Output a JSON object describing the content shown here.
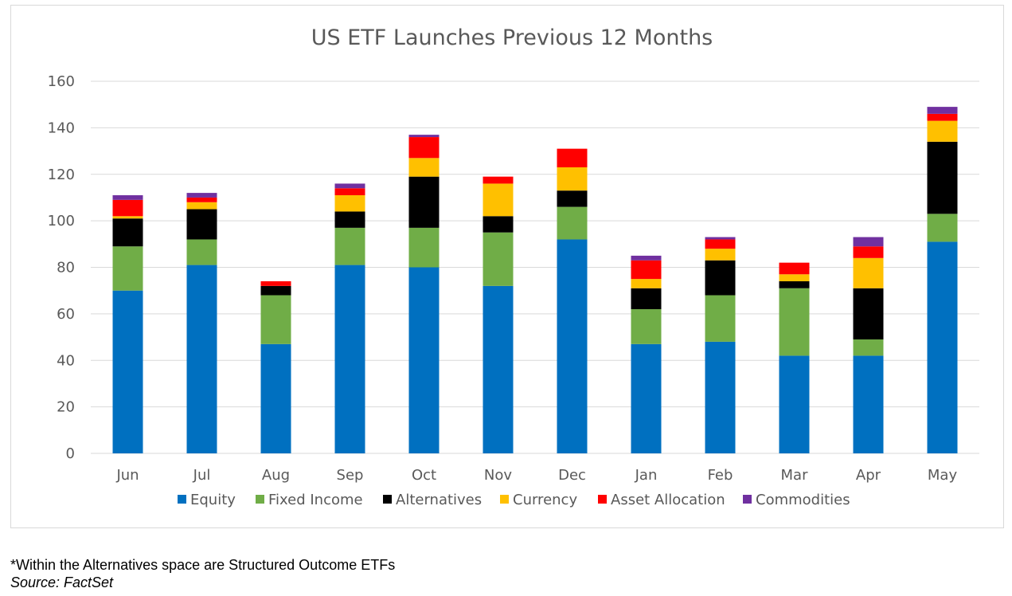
{
  "chart_data": {
    "type": "bar",
    "stacked": true,
    "title": "US ETF Launches Previous 12 Months",
    "categories": [
      "Jun",
      "Jul",
      "Aug",
      "Sep",
      "Oct",
      "Nov",
      "Dec",
      "Jan",
      "Feb",
      "Mar",
      "Apr",
      "May"
    ],
    "ylim": [
      0,
      160
    ],
    "yticks": [
      0,
      20,
      40,
      60,
      80,
      100,
      120,
      140,
      160
    ],
    "grid": true,
    "legend_position": "bottom",
    "series": [
      {
        "name": "Equity",
        "color": "#0070c0",
        "values": [
          70,
          81,
          47,
          81,
          80,
          72,
          92,
          47,
          48,
          42,
          42,
          91
        ]
      },
      {
        "name": "Fixed Income",
        "color": "#70ad47",
        "values": [
          19,
          11,
          21,
          16,
          17,
          23,
          14,
          15,
          20,
          29,
          7,
          12
        ]
      },
      {
        "name": "Alternatives",
        "color": "#000000",
        "values": [
          12,
          13,
          4,
          7,
          22,
          7,
          7,
          9,
          15,
          3,
          22,
          31
        ]
      },
      {
        "name": "Currency",
        "color": "#ffc000",
        "values": [
          1,
          3,
          0,
          7,
          8,
          14,
          10,
          4,
          5,
          3,
          13,
          9
        ]
      },
      {
        "name": "Asset Allocation",
        "color": "#ff0000",
        "values": [
          7,
          2,
          2,
          3,
          9,
          3,
          8,
          8,
          4,
          5,
          5,
          3
        ]
      },
      {
        "name": "Commodities",
        "color": "#7030a0",
        "values": [
          2,
          2,
          0,
          2,
          1,
          0,
          0,
          2,
          1,
          0,
          4,
          3
        ]
      }
    ]
  },
  "footnote": "*Within the Alternatives space are Structured Outcome ETFs",
  "source": "Source: FactSet"
}
